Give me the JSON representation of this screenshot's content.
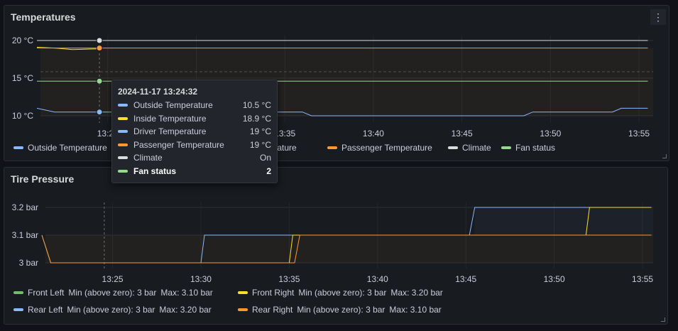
{
  "temperatures": {
    "title": "Temperatures",
    "menu_icon": "⋮",
    "y_ticks": [
      "20 °C",
      "15 °C",
      "10 °C"
    ],
    "x_ticks": [
      "13:25",
      "13:30",
      "13:35",
      "13:40",
      "13:45",
      "13:50",
      "13:55"
    ],
    "legend": [
      {
        "name": "Outside Temperature",
        "color": "#8ab8ff"
      },
      {
        "name": "Inside Temperature",
        "color": "#fade2a"
      },
      {
        "name": "Driver Temperature",
        "color": "#8ab8ff"
      },
      {
        "name": "Passenger Temperature",
        "color": "#ff9830"
      },
      {
        "name": "Climate",
        "color": "#dcdcdc"
      },
      {
        "name": "Fan status",
        "color": "#96d98d"
      }
    ],
    "tooltip": {
      "time": "2024-11-17 13:24:32",
      "rows": [
        {
          "name": "Outside Temperature",
          "value": "10.5 °C",
          "color": "#8ab8ff"
        },
        {
          "name": "Inside Temperature",
          "value": "18.9 °C",
          "color": "#fade2a"
        },
        {
          "name": "Driver Temperature",
          "value": "19 °C",
          "color": "#8ab8ff"
        },
        {
          "name": "Passenger Temperature",
          "value": "19 °C",
          "color": "#ff9830"
        },
        {
          "name": "Climate",
          "value": "On",
          "color": "#dcdcdc"
        },
        {
          "name": "Fan status",
          "value": "2",
          "color": "#96d98d"
        }
      ]
    },
    "legend_visible_fragments": {
      "first": "Outside Temperatur",
      "third_tail": "mperature"
    }
  },
  "tire": {
    "title": "Tire Pressure",
    "y_ticks": [
      "3.2 bar",
      "3.1 bar",
      "3 bar"
    ],
    "x_ticks": [
      "13:25",
      "13:30",
      "13:35",
      "13:40",
      "13:45",
      "13:50",
      "13:55"
    ],
    "legend": [
      {
        "name": "Front Left",
        "color": "#73bf69",
        "min": "Min (above zero): 3 bar",
        "max": "Max: 3.10 bar"
      },
      {
        "name": "Front Right",
        "color": "#fade2a",
        "min": "Min (above zero): 3 bar",
        "max": "Max: 3.20 bar"
      },
      {
        "name": "Rear Left",
        "color": "#8ab8ff",
        "min": "Min (above zero): 3 bar",
        "max": "Max: 3.20 bar"
      },
      {
        "name": "Rear Right",
        "color": "#ff9830",
        "min": "Min (above zero): 3 bar",
        "max": "Max: 3.10 bar"
      }
    ]
  },
  "chart_data": [
    {
      "type": "line",
      "title": "Temperatures",
      "x_unit": "time",
      "ylim": [
        9.5,
        20.5
      ],
      "series": [
        {
          "name": "Outside Temperature",
          "points": [
            [
              "13:21",
              11
            ],
            [
              "13:22",
              10.5
            ],
            [
              "13:36",
              10.5
            ],
            [
              "13:36.5",
              10
            ],
            [
              "13:48.5",
              10
            ],
            [
              "13:49",
              10.5
            ],
            [
              "13:53.5",
              10.5
            ],
            [
              "13:54",
              11
            ],
            [
              "13:55.5",
              11
            ]
          ]
        },
        {
          "name": "Inside Temperature",
          "points": [
            [
              "13:21",
              19.1
            ],
            [
              "13:22",
              19
            ],
            [
              "13:23",
              18.8
            ],
            [
              "13:24.5",
              18.9
            ]
          ]
        },
        {
          "name": "Passenger Temperature",
          "points": [
            [
              "13:21",
              19
            ],
            [
              "13:55.5",
              19
            ]
          ]
        },
        {
          "name": "Climate",
          "points": [
            [
              "13:21",
              20
            ],
            [
              "13:55.5",
              20
            ]
          ]
        },
        {
          "name": "Fan status",
          "points": [
            [
              "13:21",
              14.6
            ],
            [
              "13:55.5",
              14.6
            ]
          ]
        }
      ]
    },
    {
      "type": "line",
      "title": "Tire Pressure",
      "ylim": [
        2.97,
        3.23
      ],
      "series": [
        {
          "name": "Rear Left",
          "points": [
            [
              "13:21",
              3.1
            ],
            [
              "13:21.5",
              3.0
            ],
            [
              "13:30",
              3.0
            ],
            [
              "13:30.2",
              3.1
            ],
            [
              "13:35.4",
              3.1
            ],
            [
              "13:45.2",
              3.1
            ],
            [
              "13:45.5",
              3.2
            ],
            [
              "13:55.5",
              3.2
            ]
          ]
        },
        {
          "name": "Front Right",
          "points": [
            [
              "13:35",
              3.0
            ],
            [
              "13:35.2",
              3.1
            ],
            [
              "13:51.8",
              3.1
            ],
            [
              "13:52",
              3.2
            ],
            [
              "13:55.5",
              3.2
            ]
          ]
        },
        {
          "name": "Rear Right",
          "points": [
            [
              "13:21",
              3.1
            ],
            [
              "13:21.5",
              3.0
            ],
            [
              "13:35.3",
              3.0
            ],
            [
              "13:35.6",
              3.1
            ],
            [
              "13:55.5",
              3.1
            ]
          ]
        }
      ]
    }
  ]
}
